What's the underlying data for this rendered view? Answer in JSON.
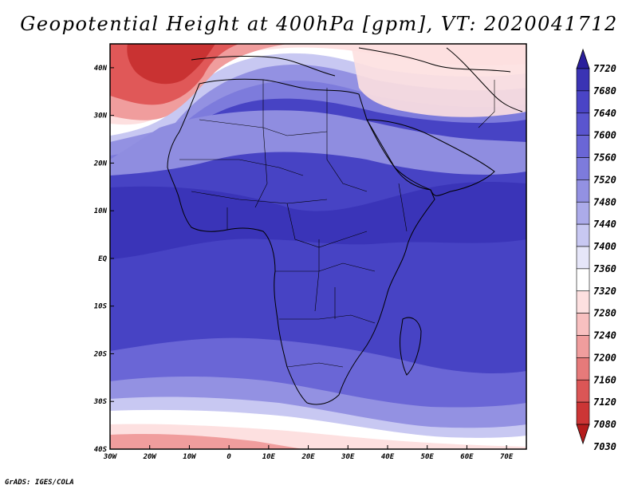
{
  "title": "Geopotential Height at 400hPa [gpm], VT: 2020041712",
  "footer": "GrADS: IGES/COLA",
  "map": {
    "lon_labels": [
      "30W",
      "20W",
      "10W",
      "0",
      "10E",
      "20E",
      "30E",
      "40E",
      "50E",
      "60E",
      "70E"
    ],
    "lat_labels": [
      "40N",
      "30N",
      "20N",
      "10N",
      "EQ",
      "10S",
      "20S",
      "30S",
      "40S"
    ],
    "lon_range": [
      -30,
      75
    ],
    "lat_range": [
      -40,
      45
    ]
  },
  "colorbar": {
    "levels": [
      "7720",
      "7680",
      "7640",
      "7600",
      "7560",
      "7520",
      "7480",
      "7440",
      "7400",
      "7360",
      "7320",
      "7280",
      "7240",
      "7200",
      "7160",
      "7120",
      "7080",
      "7030"
    ],
    "colors": [
      "#2a1f9c",
      "#3a33b4",
      "#4a44c6",
      "#5a55cf",
      "#6a66d6",
      "#7d7bdc",
      "#9391e2",
      "#acabea",
      "#c8c8f2",
      "#e6e6f9",
      "#ffffff",
      "#fde0e0",
      "#f8c0c0",
      "#f09d9d",
      "#e67a7a",
      "#db5656",
      "#cc3535",
      "#b51c1c"
    ]
  },
  "zones": {
    "north_low": "#e05858",
    "north_low_core": "#c93232",
    "transition_white": "#ffffff",
    "pale_blue": "#c8c8f2",
    "mid_blue": "#8f8de0",
    "deep_blue": "#4743c4",
    "darkest_blue": "#3a34b8",
    "south_low": "#e87070"
  }
}
